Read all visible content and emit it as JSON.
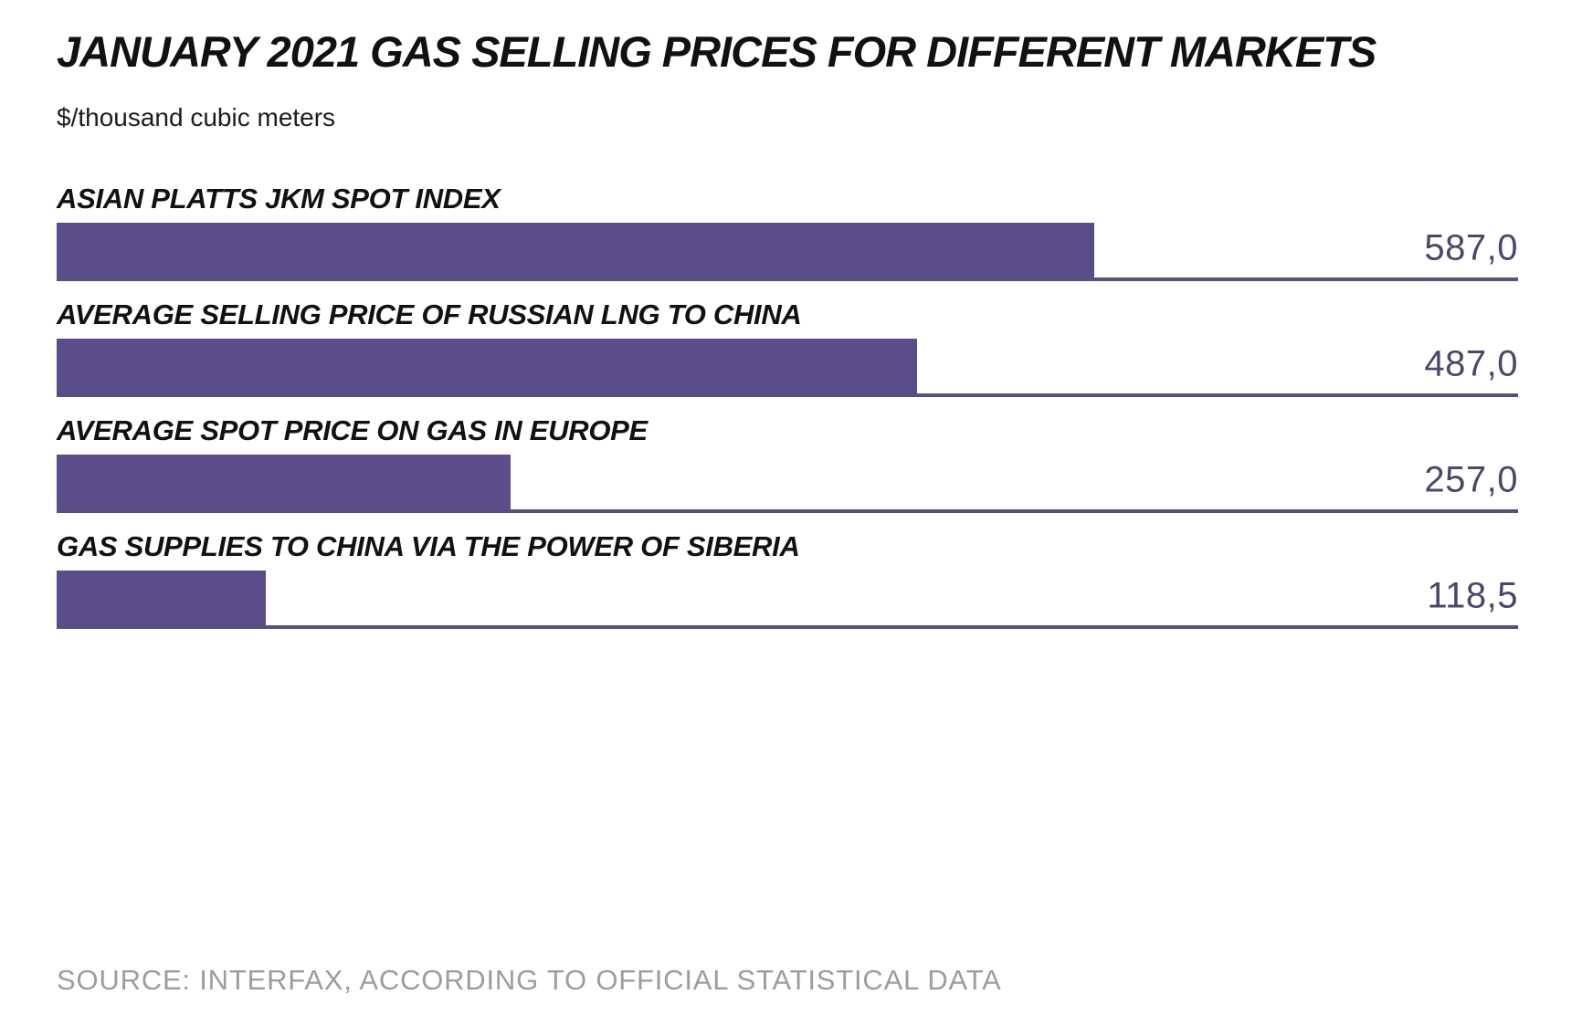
{
  "header": {
    "title": "JANUARY 2021 GAS SELLING PRICES FOR DIFFERENT MARKETS",
    "subtitle": "$/thousand cubic meters"
  },
  "chart_data": {
    "type": "bar",
    "orientation": "horizontal",
    "title": "JANUARY 2021 GAS SELLING PRICES FOR DIFFERENT MARKETS",
    "unit_label": "$/thousand cubic meters",
    "categories": [
      "ASIAN PLATTS JKM SPOT INDEX",
      "AVERAGE SELLING PRICE OF RUSSIAN LNG TO CHINA",
      "AVERAGE SPOT PRICE ON GAS IN EUROPE",
      "GAS SUPPLIES TO CHINA VIA THE POWER OF SIBERIA"
    ],
    "values": [
      587.0,
      487.0,
      257.0,
      118.5
    ],
    "value_labels": [
      "587,0",
      "487,0",
      "257,0",
      "118,5"
    ],
    "xlabel": "",
    "ylabel": "$/thousand cubic meters",
    "axis_max": 827,
    "grid": false,
    "legend": false,
    "bar_color": "#5b4d89",
    "baseline_color": "#55507c",
    "value_color": "#4b4769"
  },
  "footer": {
    "source": "SOURCE: INTERFAX, ACCORDING TO OFFICIAL STATISTICAL DATA"
  }
}
